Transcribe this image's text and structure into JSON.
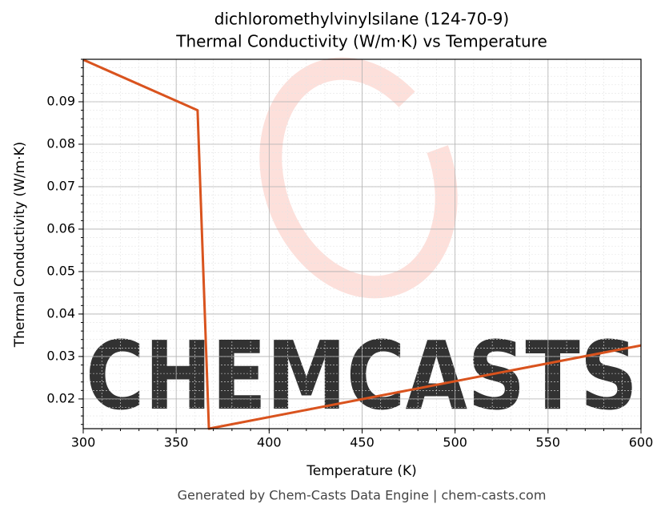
{
  "chart_data": {
    "type": "line",
    "title": "dichloromethylvinylsilane (124-70-9)",
    "subtitle": "Thermal Conductivity (W/m·K) vs Temperature",
    "x_label": "Temperature (K)",
    "y_label": "Thermal Conductivity (W/m·K)",
    "footer": "Generated by Chem-Casts Data Engine | chem-casts.com",
    "watermark": "CHEMCASTS",
    "x": [
      300,
      361.5,
      367.6,
      600
    ],
    "series": [
      {
        "name": "Thermal Conductivity",
        "color": "#d9531e",
        "values": [
          0.0999,
          0.088,
          0.013,
          0.0326
        ]
      }
    ],
    "xlim": [
      300,
      600
    ],
    "xticks": [
      300,
      350,
      400,
      450,
      500,
      550,
      600
    ],
    "ylim": [
      0.013,
      0.1
    ],
    "yticks": [
      0.02,
      0.03,
      0.04,
      0.05,
      0.06,
      0.07,
      0.08,
      0.09
    ],
    "grid": true
  }
}
